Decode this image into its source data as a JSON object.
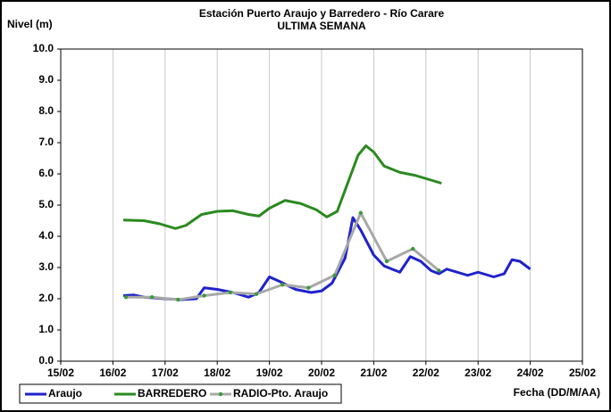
{
  "chart_data": {
    "type": "line",
    "title": "Estación Puerto Araujo y Barredero - Río Carare",
    "subtitle": "ULTIMA SEMANA",
    "y_label": "Nivel (m)",
    "x_label": "Fecha (DD/M/AA)",
    "xlim": [
      15,
      25
    ],
    "xticks": [
      {
        "value": 15,
        "label": "15/02"
      },
      {
        "value": 16,
        "label": "16/02"
      },
      {
        "value": 17,
        "label": "17/02"
      },
      {
        "value": 18,
        "label": "18/02"
      },
      {
        "value": 19,
        "label": "19/02"
      },
      {
        "value": 20,
        "label": "20/02"
      },
      {
        "value": 21,
        "label": "21/02"
      },
      {
        "value": 22,
        "label": "22/02"
      },
      {
        "value": 23,
        "label": "23/02"
      },
      {
        "value": 24,
        "label": "24/02"
      },
      {
        "value": 25,
        "label": "25/02"
      }
    ],
    "ylim": [
      0,
      10
    ],
    "yticks": [
      {
        "value": 0,
        "label": "0.0"
      },
      {
        "value": 1,
        "label": "1.0"
      },
      {
        "value": 2,
        "label": "2.0"
      },
      {
        "value": 3,
        "label": "3.0"
      },
      {
        "value": 4,
        "label": "4.0"
      },
      {
        "value": 5,
        "label": "5.0"
      },
      {
        "value": 6,
        "label": "6.0"
      },
      {
        "value": 7,
        "label": "7.0"
      },
      {
        "value": 8,
        "label": "8.0"
      },
      {
        "value": 9,
        "label": "9.0"
      },
      {
        "value": 10,
        "label": "10.0"
      }
    ],
    "grid": "x",
    "legend": "bottom-left",
    "series": [
      {
        "name": "Araujo",
        "color": "#1f22cc",
        "x": [
          16.2,
          16.4,
          16.6,
          17.0,
          17.3,
          17.6,
          17.75,
          18.0,
          18.3,
          18.6,
          18.8,
          19.0,
          19.2,
          19.5,
          19.8,
          20.0,
          20.2,
          20.45,
          20.6,
          20.75,
          21.0,
          21.2,
          21.5,
          21.7,
          21.9,
          22.1,
          22.25,
          22.4,
          22.8,
          23.0,
          23.3,
          23.5,
          23.65,
          23.8,
          24.0
        ],
        "values": [
          2.1,
          2.12,
          2.05,
          2.0,
          1.97,
          2.0,
          2.35,
          2.3,
          2.2,
          2.05,
          2.2,
          2.7,
          2.55,
          2.3,
          2.2,
          2.25,
          2.5,
          3.3,
          4.6,
          4.2,
          3.4,
          3.05,
          2.85,
          3.35,
          3.2,
          2.9,
          2.8,
          2.95,
          2.75,
          2.85,
          2.7,
          2.8,
          3.25,
          3.2,
          2.95
        ]
      },
      {
        "name": "BARREDERO",
        "color": "#2a8a1f",
        "x": [
          16.2,
          16.6,
          16.9,
          17.2,
          17.4,
          17.7,
          18.0,
          18.3,
          18.6,
          18.8,
          19.0,
          19.3,
          19.6,
          19.9,
          20.1,
          20.3,
          20.5,
          20.7,
          20.85,
          21.0,
          21.2,
          21.5,
          21.8,
          22.0,
          22.3
        ],
        "values": [
          4.52,
          4.5,
          4.4,
          4.25,
          4.35,
          4.7,
          4.8,
          4.82,
          4.7,
          4.65,
          4.9,
          5.15,
          5.05,
          4.85,
          4.62,
          4.8,
          5.7,
          6.6,
          6.9,
          6.7,
          6.25,
          6.05,
          5.95,
          5.85,
          5.7
        ]
      },
      {
        "name": "RADIO-Pto. Araujo",
        "color": "#a8a8a8",
        "marker_color": "#3a9a3a",
        "x": [
          16.25,
          16.75,
          17.25,
          17.75,
          18.25,
          18.75,
          19.25,
          19.75,
          20.25,
          20.75,
          21.25,
          21.75,
          22.25
        ],
        "values": [
          2.05,
          2.05,
          1.97,
          2.1,
          2.2,
          2.15,
          2.45,
          2.35,
          2.75,
          4.75,
          3.2,
          3.6,
          2.9
        ]
      }
    ]
  }
}
